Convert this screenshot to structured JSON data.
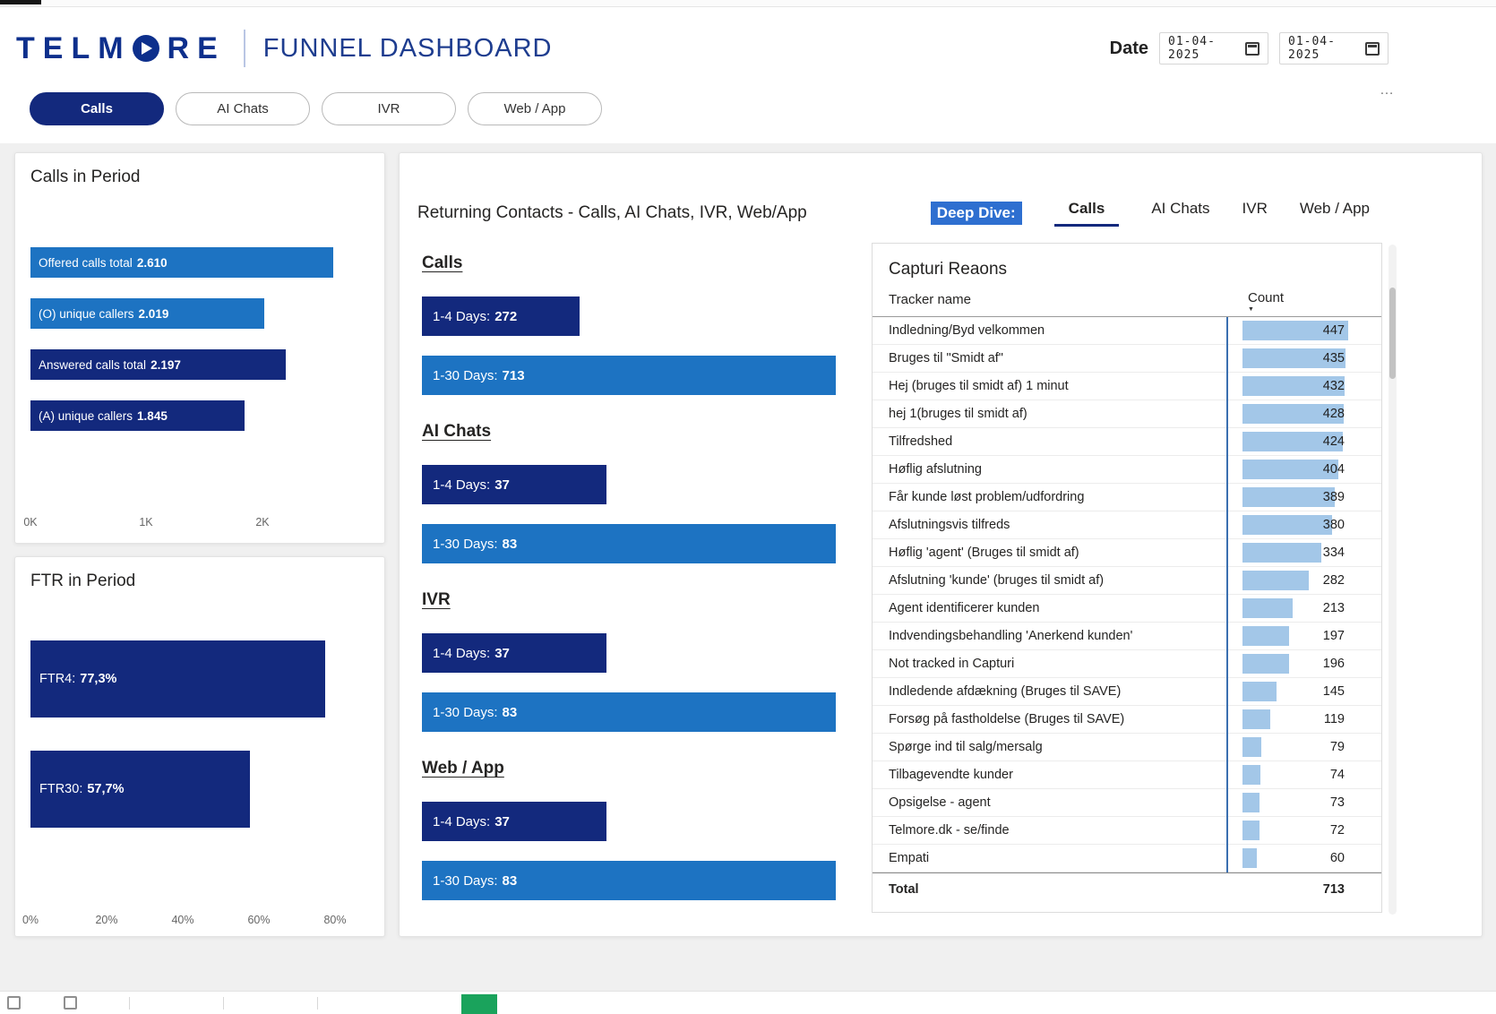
{
  "header": {
    "brand_full": "TELMORE",
    "brand_left": "TELM",
    "brand_right": "RE",
    "title": "FUNNEL DASHBOARD",
    "date_label": "Date",
    "date_from": "01-04-2025",
    "date_to": "01-04-2025",
    "more_icon": "…"
  },
  "nav": {
    "tabs": [
      {
        "label": "Calls",
        "active": true
      },
      {
        "label": "AI Chats",
        "active": false
      },
      {
        "label": "IVR",
        "active": false
      },
      {
        "label": "Web / App",
        "active": false
      }
    ]
  },
  "calls": {
    "title": "Calls in Period",
    "max": 2610,
    "bars": [
      {
        "label": "Offered calls total",
        "value": 2610,
        "value_label": "2.610"
      },
      {
        "label": "(O) unique callers",
        "value": 2019,
        "value_label": "2.019"
      },
      {
        "label": "Answered calls total",
        "value": 2197,
        "value_label": "2.197"
      },
      {
        "label": "(A) unique callers",
        "value": 1845,
        "value_label": "1.845"
      }
    ],
    "x_ticks": [
      "0K",
      "1K",
      "2K"
    ]
  },
  "ftr": {
    "title": "FTR in Period",
    "max": 80,
    "bars": [
      {
        "label": "FTR4:",
        "value": 77.3,
        "value_label": "77,3%"
      },
      {
        "label": "FTR30:",
        "value": 57.7,
        "value_label": "57,7%"
      }
    ],
    "x_ticks": [
      "0%",
      "20%",
      "40%",
      "60%",
      "80%"
    ]
  },
  "returning": {
    "title": "Returning Contacts - Calls, AI Chats, IVR, Web/App",
    "deep_dive_label": "Deep Dive:",
    "tabs": [
      {
        "label": "Calls",
        "active": true
      },
      {
        "label": "AI Chats",
        "active": false
      },
      {
        "label": "IVR",
        "active": false
      },
      {
        "label": "Web / App",
        "active": false
      }
    ],
    "sections": [
      {
        "heading": "Calls",
        "max": 713,
        "bars": [
          {
            "label": "1-4 Days:",
            "value": 272
          },
          {
            "label": "1-30 Days:",
            "value": 713
          }
        ]
      },
      {
        "heading": "AI Chats",
        "max": 83,
        "bars": [
          {
            "label": "1-4 Days:",
            "value": 37
          },
          {
            "label": "1-30 Days:",
            "value": 83
          }
        ]
      },
      {
        "heading": "IVR",
        "max": 83,
        "bars": [
          {
            "label": "1-4 Days:",
            "value": 37
          },
          {
            "label": "1-30 Days:",
            "value": 83
          }
        ]
      },
      {
        "heading": "Web / App",
        "max": 83,
        "bars": [
          {
            "label": "1-4 Days:",
            "value": 37
          },
          {
            "label": "1-30 Days:",
            "value": 83
          }
        ]
      }
    ]
  },
  "capturi": {
    "title": "Capturi Reaons",
    "col_name": "Tracker name",
    "col_count": "Count",
    "sort_icon": "▼",
    "max_count": 447,
    "rows": [
      {
        "name": "Indledning/Byd velkommen",
        "count": 447
      },
      {
        "name": "Bruges til \"Smidt af\"",
        "count": 435
      },
      {
        "name": "Hej (bruges til smidt af) 1 minut",
        "count": 432
      },
      {
        "name": "hej 1(bruges til smidt af)",
        "count": 428
      },
      {
        "name": "Tilfredshed",
        "count": 424
      },
      {
        "name": "Høflig afslutning",
        "count": 404
      },
      {
        "name": "Får kunde løst problem/udfordring",
        "count": 389
      },
      {
        "name": "Afslutningsvis tilfreds",
        "count": 380
      },
      {
        "name": "Høflig 'agent' (Bruges til smidt af)",
        "count": 334
      },
      {
        "name": "Afslutning 'kunde' (bruges til smidt af)",
        "count": 282
      },
      {
        "name": "Agent identificerer kunden",
        "count": 213
      },
      {
        "name": "Indvendingsbehandling 'Anerkend kunden'",
        "count": 197
      },
      {
        "name": "Not tracked in Capturi",
        "count": 196
      },
      {
        "name": "Indledende afdækning (Bruges til SAVE)",
        "count": 145
      },
      {
        "name": "Forsøg på fastholdelse (Bruges til SAVE)",
        "count": 119
      },
      {
        "name": "Spørge ind til salg/mersalg",
        "count": 79
      },
      {
        "name": "Tilbagevendte kunder",
        "count": 74
      },
      {
        "name": "Opsigelse - agent",
        "count": 73
      },
      {
        "name": "Telmore.dk - se/finde",
        "count": 72
      },
      {
        "name": "Empati",
        "count": 60
      }
    ],
    "total_label": "Total",
    "total_value": 713
  },
  "colors": {
    "brand_navy": "#0d2f8c",
    "bar_navy": "#13297d",
    "bar_blue": "#1d73c2",
    "table_bar_blue": "#a3c7e8",
    "table_axis_blue": "#3a6fb0",
    "deep_dive_highlight": "#2e6fd0",
    "page_tab_green": "#1aa35c"
  },
  "chart_data": [
    {
      "type": "bar",
      "orientation": "horizontal",
      "title": "Calls in Period",
      "categories": [
        "Offered calls total",
        "(O) unique callers",
        "Answered calls total",
        "(A) unique callers"
      ],
      "values": [
        2610,
        2019,
        2197,
        1845
      ],
      "value_labels": [
        "2.610",
        "2.019",
        "2.197",
        "1.845"
      ],
      "xlim": [
        0,
        2610
      ],
      "x_ticks": [
        "0K",
        "1K",
        "2K"
      ],
      "bar_colors": [
        "#1d73c2",
        "#1d73c2",
        "#13297d",
        "#13297d"
      ]
    },
    {
      "type": "bar",
      "orientation": "horizontal",
      "title": "FTR in Period",
      "categories": [
        "FTR4",
        "FTR30"
      ],
      "values": [
        77.3,
        57.7
      ],
      "value_labels": [
        "77,3%",
        "57,7%"
      ],
      "unit": "percent",
      "xlim": [
        0,
        80
      ],
      "x_ticks": [
        "0%",
        "20%",
        "40%",
        "60%",
        "80%"
      ],
      "bar_colors": [
        "#13297d",
        "#13297d"
      ]
    },
    {
      "type": "bar",
      "orientation": "horizontal",
      "title": "Returning Contacts - Calls, AI Chats, IVR, Web/App",
      "categories": [
        "Calls",
        "AI Chats",
        "IVR",
        "Web / App"
      ],
      "series": [
        {
          "name": "1-4 Days",
          "values": [
            272,
            37,
            37,
            37
          ],
          "color": "#13297d"
        },
        {
          "name": "1-30 Days",
          "values": [
            713,
            83,
            83,
            83
          ],
          "color": "#1d73c2"
        }
      ]
    },
    {
      "type": "bar",
      "orientation": "horizontal",
      "title": "Capturi Reaons",
      "xlabel": "Count",
      "categories": [
        "Indledning/Byd velkommen",
        "Bruges til \"Smidt af\"",
        "Hej (bruges til smidt af) 1 minut",
        "hej 1(bruges til smidt af)",
        "Tilfredshed",
        "Høflig afslutning",
        "Får kunde løst problem/udfordring",
        "Afslutningsvis tilfreds",
        "Høflig 'agent' (Bruges til smidt af)",
        "Afslutning 'kunde' (bruges til smidt af)",
        "Agent identificerer kunden",
        "Indvendingsbehandling 'Anerkend kunden'",
        "Not tracked in Capturi",
        "Indledende afdækning (Bruges til SAVE)",
        "Forsøg på fastholdelse (Bruges til SAVE)",
        "Spørge ind til salg/mersalg",
        "Tilbagevendte kunder",
        "Opsigelse - agent",
        "Telmore.dk - se/finde",
        "Empati"
      ],
      "values": [
        447,
        435,
        432,
        428,
        424,
        404,
        389,
        380,
        334,
        282,
        213,
        197,
        196,
        145,
        119,
        79,
        74,
        73,
        72,
        60
      ],
      "total": 713,
      "bar_color": "#a3c7e8"
    }
  ]
}
